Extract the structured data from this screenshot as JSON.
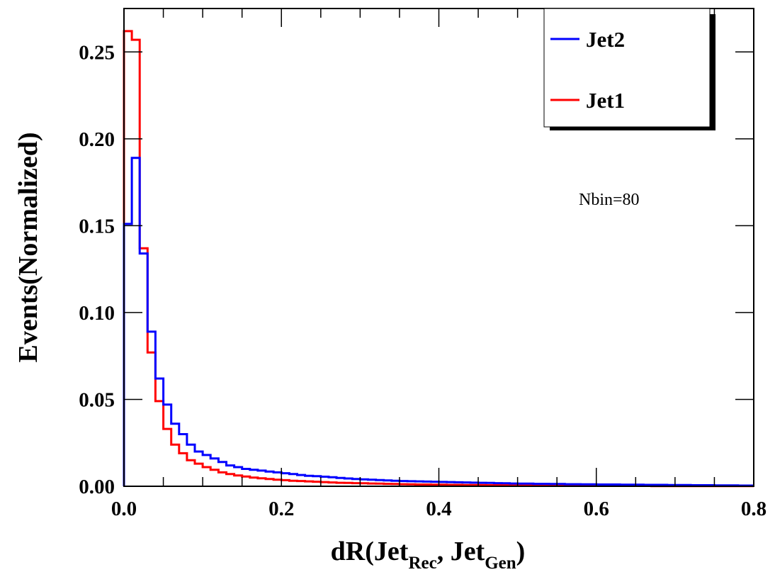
{
  "chart_data": {
    "type": "line",
    "style": "step-histogram",
    "bins": 80,
    "xlim": [
      0.0,
      0.8
    ],
    "ylim": [
      0.0,
      0.275
    ],
    "xlabel": "dR(Jet",
    "xlabel_sub1": "Rec",
    "xlabel_mid": ", Jet",
    "xlabel_sub2": "Gen",
    "xlabel_end": ")",
    "ylabel": "Events(Normalized)",
    "xticks": [
      0.0,
      0.2,
      0.4,
      0.6,
      0.8
    ],
    "xtick_labels": [
      "0.0",
      "0.2",
      "0.4",
      "0.6",
      "0.8"
    ],
    "yticks": [
      0.0,
      0.05,
      0.1,
      0.15,
      0.2,
      0.25
    ],
    "ytick_labels": [
      "0.00",
      "0.05",
      "0.10",
      "0.15",
      "0.20",
      "0.25"
    ],
    "annotation": "Nbin=80",
    "legend_position": "top-right",
    "grid": false,
    "series": [
      {
        "name": "Jet2",
        "color": "#0000ff",
        "values": [
          0.151,
          0.189,
          0.134,
          0.089,
          0.062,
          0.047,
          0.036,
          0.03,
          0.024,
          0.02,
          0.018,
          0.016,
          0.014,
          0.012,
          0.011,
          0.01,
          0.0095,
          0.009,
          0.0085,
          0.008,
          0.0075,
          0.007,
          0.0065,
          0.006,
          0.0058,
          0.0055,
          0.0052,
          0.0048,
          0.0045,
          0.0042,
          0.004,
          0.0038,
          0.0036,
          0.0034,
          0.0032,
          0.003,
          0.0029,
          0.0028,
          0.0027,
          0.0026,
          0.0025,
          0.0024,
          0.0023,
          0.0022,
          0.0021,
          0.002,
          0.0019,
          0.0018,
          0.0017,
          0.0016,
          0.0015,
          0.0015,
          0.0014,
          0.0014,
          0.0013,
          0.0013,
          0.0012,
          0.0012,
          0.0011,
          0.0011,
          0.001,
          0.001,
          0.001,
          0.0009,
          0.0009,
          0.0009,
          0.0008,
          0.0008,
          0.0008,
          0.0007,
          0.0007,
          0.0007,
          0.0006,
          0.0006,
          0.0006,
          0.0005,
          0.0005,
          0.0005,
          0.0004,
          0.0004
        ]
      },
      {
        "name": "Jet1",
        "color": "#ff0000",
        "values": [
          0.262,
          0.257,
          0.137,
          0.077,
          0.049,
          0.033,
          0.024,
          0.019,
          0.015,
          0.013,
          0.011,
          0.0095,
          0.008,
          0.007,
          0.0062,
          0.0056,
          0.005,
          0.0046,
          0.0042,
          0.0038,
          0.0035,
          0.0032,
          0.003,
          0.0028,
          0.0026,
          0.0024,
          0.0022,
          0.002,
          0.0019,
          0.0018,
          0.0017,
          0.0016,
          0.0015,
          0.0014,
          0.0013,
          0.0012,
          0.0011,
          0.001,
          0.001,
          0.0009,
          0.0009,
          0.0008,
          0.0008,
          0.0007,
          0.0007,
          0.0007,
          0.0006,
          0.0006,
          0.0006,
          0.0005,
          0.0005,
          0.0005,
          0.0004,
          0.0004,
          0.0004,
          0.0004,
          0.0003,
          0.0003,
          0.0003,
          0.0003,
          0.0003,
          0.0002,
          0.0002,
          0.0002,
          0.0002,
          0.0002,
          0.0002,
          0.0001,
          0.0001,
          0.0001,
          0.0001,
          0.0001,
          0.0001,
          0.0001,
          0.0001,
          0.0001,
          0.0001,
          0.0001,
          0.0001,
          0.0001
        ]
      }
    ]
  }
}
